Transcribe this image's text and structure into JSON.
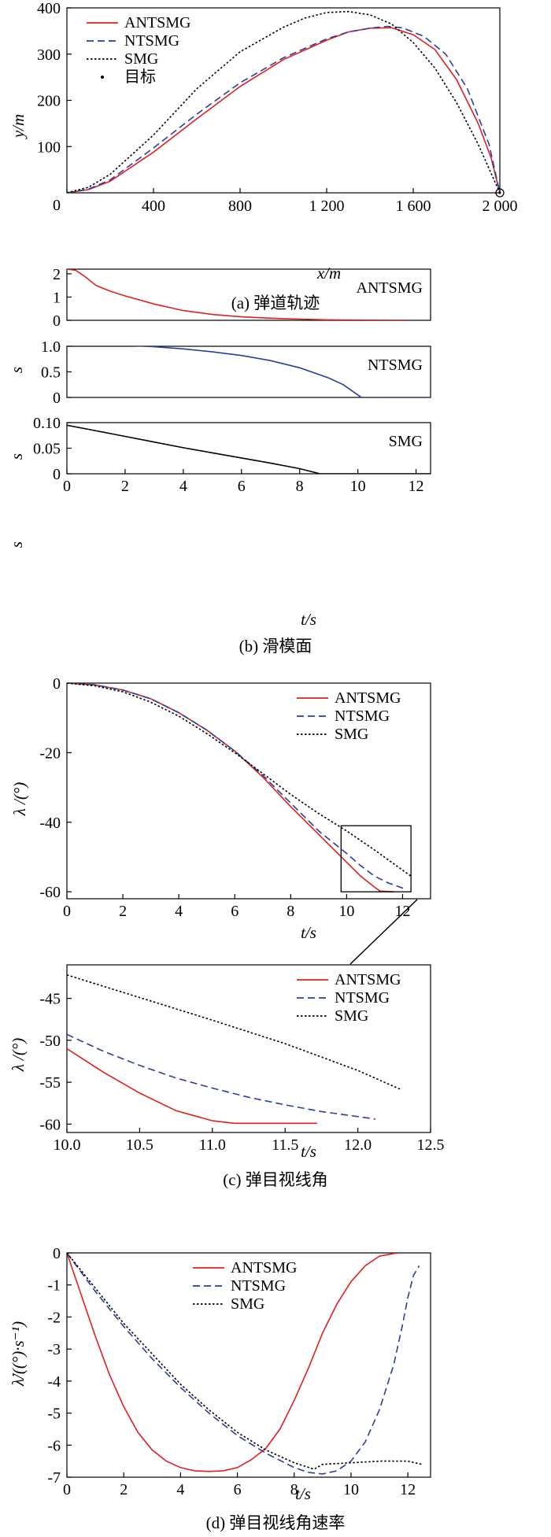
{
  "captions": {
    "a": "(a) 弹道轨迹",
    "b": "(b) 滑模面",
    "c": "(c) 弹目视线角",
    "d": "(d) 弹目视线角速率"
  },
  "colors": {
    "ANTSMG": "#e02020",
    "NTSMG": "#2a3f9a",
    "SMG": "#000000"
  },
  "chart_data": [
    {
      "id": "trajectory",
      "type": "line",
      "xlabel": "x/m",
      "ylabel": "y/m",
      "xlim": [
        0,
        2000
      ],
      "ylim": [
        0,
        400
      ],
      "xticks": [
        "0",
        "400",
        "800",
        "1 200",
        "1 600",
        "2 000"
      ],
      "yticks": [
        "100",
        "200",
        "300",
        "400"
      ],
      "legend_position": "top-left",
      "series": [
        {
          "name": "ANTSMG",
          "style": "solid",
          "color": "#e02020",
          "x": [
            0,
            100,
            200,
            400,
            600,
            800,
            1000,
            1200,
            1300,
            1400,
            1500,
            1600,
            1700,
            1800,
            1900,
            1960,
            2000
          ],
          "y": [
            0,
            7,
            25,
            88,
            160,
            230,
            288,
            330,
            348,
            356,
            357,
            342,
            310,
            245,
            150,
            75,
            0
          ]
        },
        {
          "name": "NTSMG",
          "style": "dashed",
          "color": "#2a3f9a",
          "x": [
            0,
            100,
            200,
            400,
            600,
            800,
            1000,
            1200,
            1300,
            1400,
            1480,
            1550,
            1650,
            1750,
            1850,
            1950,
            2000
          ],
          "y": [
            0,
            8,
            28,
            97,
            170,
            238,
            292,
            333,
            348,
            356,
            360,
            357,
            338,
            300,
            225,
            105,
            0
          ]
        },
        {
          "name": "SMG",
          "style": "dotted",
          "color": "#000000",
          "x": [
            0,
            100,
            200,
            400,
            600,
            800,
            1000,
            1100,
            1200,
            1300,
            1400,
            1500,
            1600,
            1700,
            1800,
            1900,
            2000
          ],
          "y": [
            0,
            12,
            40,
            125,
            225,
            305,
            358,
            378,
            390,
            392,
            385,
            365,
            325,
            270,
            195,
            105,
            0
          ]
        },
        {
          "name": "目标",
          "style": "marker",
          "color": "#000000",
          "x": [
            2000
          ],
          "y": [
            0
          ]
        }
      ]
    },
    {
      "id": "sliding_antsmg",
      "type": "line",
      "xlabel": "",
      "ylabel": "s",
      "xlim": [
        0,
        12.5
      ],
      "ylim": [
        0,
        2.2
      ],
      "yticks": [
        "0",
        "1",
        "2"
      ],
      "label_text": "ANTSMG",
      "series": [
        {
          "name": "ANTSMG",
          "style": "solid",
          "color": "#e02020",
          "x": [
            0,
            0.3,
            0.6,
            1.0,
            1.5,
            2,
            3,
            4,
            5,
            6,
            7,
            8,
            9,
            10,
            11,
            11.7
          ],
          "y": [
            2.2,
            2.15,
            1.9,
            1.5,
            1.25,
            1.05,
            0.7,
            0.42,
            0.25,
            0.15,
            0.09,
            0.05,
            0.02,
            0.01,
            0.005,
            0
          ]
        }
      ]
    },
    {
      "id": "sliding_ntsmg",
      "type": "line",
      "xlabel": "",
      "ylabel": "s",
      "xlim": [
        0,
        12.5
      ],
      "ylim": [
        0,
        1.0
      ],
      "yticks": [
        "0",
        "0.5",
        "1.0"
      ],
      "label_text": "NTSMG",
      "series": [
        {
          "name": "NTSMG",
          "style": "solid",
          "color": "#2a3f9a",
          "x": [
            0,
            1,
            2,
            3,
            4,
            5,
            6,
            7,
            8,
            9,
            9.5,
            10,
            10.2,
            10.4,
            10.6,
            10.8,
            11,
            12,
            12.4
          ],
          "y": [
            1.05,
            1.04,
            1.02,
            0.99,
            0.95,
            0.89,
            0.82,
            0.72,
            0.58,
            0.38,
            0.25,
            0.05,
            -0.03,
            -0.06,
            -0.05,
            0.0,
            0.0,
            0.0,
            0.0
          ]
        }
      ]
    },
    {
      "id": "sliding_smg",
      "type": "line",
      "xlabel": "t/s",
      "ylabel": "s",
      "xlim": [
        0,
        12.5
      ],
      "ylim": [
        0,
        0.1
      ],
      "xticks": [
        "0",
        "2",
        "4",
        "6",
        "8",
        "10",
        "12"
      ],
      "yticks": [
        "0",
        "0.05",
        "0.10"
      ],
      "label_text": "SMG",
      "series": [
        {
          "name": "SMG",
          "style": "solid",
          "color": "#000000",
          "x": [
            0,
            1,
            2,
            3,
            4,
            5,
            6,
            7,
            8,
            8.7,
            9,
            10,
            11,
            12,
            12.5
          ],
          "y": [
            0.095,
            0.084,
            0.073,
            0.062,
            0.051,
            0.041,
            0.031,
            0.021,
            0.01,
            0.0,
            0.0,
            0.0,
            0.0,
            0.0,
            0.0
          ]
        }
      ]
    },
    {
      "id": "los_angle",
      "type": "line",
      "xlabel": "t/s",
      "ylabel": "λ /(°)",
      "xlim": [
        0,
        13
      ],
      "ylim": [
        -62,
        0
      ],
      "xticks": [
        "0",
        "2",
        "4",
        "6",
        "8",
        "10",
        "12"
      ],
      "yticks": [
        "0",
        "-20",
        "-40",
        "-60"
      ],
      "legend_position": "top-right",
      "series": [
        {
          "name": "ANTSMG",
          "style": "solid",
          "color": "#e02020",
          "x": [
            0,
            1,
            2,
            3,
            4,
            5,
            6,
            7,
            8,
            9,
            9.5,
            10,
            10.5,
            11,
            11.2,
            11.7
          ],
          "y": [
            0,
            -0.5,
            -2,
            -4.5,
            -8.5,
            -13.5,
            -19.5,
            -27,
            -35.5,
            -43.5,
            -47.5,
            -51.5,
            -55.5,
            -58.7,
            -59.8,
            -60
          ]
        },
        {
          "name": "NTSMG",
          "style": "dashed",
          "color": "#2a3f9a",
          "x": [
            0,
            1,
            2,
            3,
            4,
            5,
            6,
            7,
            8,
            9,
            10,
            10.5,
            11,
            11.5,
            12.1
          ],
          "y": [
            0,
            -0.5,
            -2,
            -4.5,
            -8.5,
            -13.5,
            -19.5,
            -26.5,
            -34.5,
            -42.5,
            -49,
            -52.5,
            -55.5,
            -57.5,
            -59.2
          ]
        },
        {
          "name": "SMG",
          "style": "dotted",
          "color": "#000000",
          "x": [
            0,
            1,
            2,
            3,
            4,
            5,
            6,
            7,
            8,
            9,
            10,
            11,
            12.3
          ],
          "y": [
            0,
            -0.8,
            -2.5,
            -5.5,
            -9.5,
            -14.5,
            -20,
            -26,
            -32,
            -37.5,
            -42.5,
            -48,
            -55.5
          ]
        }
      ]
    },
    {
      "id": "los_angle_zoom",
      "type": "line",
      "xlabel": "t/s",
      "ylabel": "λ /(°)",
      "xlim": [
        10.0,
        12.5
      ],
      "ylim": [
        -61,
        -41
      ],
      "xticks": [
        "10.0",
        "10.5",
        "11.0",
        "11.5",
        "12.0",
        "12.5"
      ],
      "yticks": [
        "-45",
        "-50",
        "-55",
        "-60"
      ],
      "legend_position": "top-right",
      "series": [
        {
          "name": "ANTSMG",
          "style": "solid",
          "color": "#e02020",
          "x": [
            10.0,
            10.25,
            10.5,
            10.75,
            11.0,
            11.15,
            11.4,
            11.72
          ],
          "y": [
            -51,
            -53.8,
            -56.3,
            -58.4,
            -59.6,
            -59.9,
            -59.9,
            -59.9
          ]
        },
        {
          "name": "NTSMG",
          "style": "dashed",
          "color": "#2a3f9a",
          "x": [
            10.0,
            10.25,
            10.5,
            10.75,
            11.0,
            11.25,
            11.5,
            11.75,
            12.0,
            12.12
          ],
          "y": [
            -49.3,
            -51.3,
            -53.0,
            -54.5,
            -55.7,
            -56.8,
            -57.7,
            -58.5,
            -59.1,
            -59.4
          ]
        },
        {
          "name": "SMG",
          "style": "dotted",
          "color": "#000000",
          "x": [
            10.0,
            10.5,
            11.0,
            11.5,
            12.0,
            12.3
          ],
          "y": [
            -42.2,
            -44.9,
            -47.6,
            -50.4,
            -53.6,
            -55.9
          ]
        }
      ]
    },
    {
      "id": "los_rate",
      "type": "line",
      "xlabel": "t/s",
      "ylabel": "λ̇/((°)·s⁻¹)",
      "xlim": [
        0,
        12.8
      ],
      "ylim": [
        -7,
        0
      ],
      "xticks": [
        "0",
        "2",
        "4",
        "6",
        "8",
        "10",
        "12"
      ],
      "yticks": [
        "0",
        "-1",
        "-2",
        "-3",
        "-4",
        "-5",
        "-6",
        "-7"
      ],
      "legend_position": "top-center",
      "series": [
        {
          "name": "ANTSMG",
          "style": "solid",
          "color": "#e02020",
          "x": [
            0,
            0.5,
            1,
            1.5,
            2,
            2.5,
            3,
            3.5,
            4,
            4.5,
            5,
            5.5,
            6,
            6.5,
            7,
            7.5,
            8,
            8.5,
            9,
            9.5,
            10,
            10.5,
            11,
            11.5,
            11.7
          ],
          "y": [
            0,
            -1.3,
            -2.6,
            -3.8,
            -4.8,
            -5.6,
            -6.15,
            -6.5,
            -6.7,
            -6.8,
            -6.82,
            -6.8,
            -6.7,
            -6.45,
            -6.1,
            -5.5,
            -4.6,
            -3.6,
            -2.5,
            -1.6,
            -0.9,
            -0.4,
            -0.1,
            -0.02,
            0
          ]
        },
        {
          "name": "NTSMG",
          "style": "dashed",
          "color": "#2a3f9a",
          "x": [
            0,
            1,
            2,
            3,
            4,
            5,
            6,
            7,
            8,
            8.5,
            9,
            9.5,
            10,
            10.5,
            11,
            11.5,
            11.8,
            12.0,
            12.2,
            12.4
          ],
          "y": [
            0,
            -1.2,
            -2.3,
            -3.3,
            -4.2,
            -5.0,
            -5.7,
            -6.25,
            -6.7,
            -6.85,
            -6.9,
            -6.8,
            -6.5,
            -5.9,
            -4.9,
            -3.5,
            -2.3,
            -1.4,
            -0.7,
            -0.4
          ]
        },
        {
          "name": "SMG",
          "style": "dotted",
          "color": "#000000",
          "x": [
            0,
            1,
            2,
            3,
            4,
            5,
            6,
            7,
            8,
            8.7,
            9,
            10,
            11,
            12,
            12.5
          ],
          "y": [
            0,
            -1.1,
            -2.2,
            -3.15,
            -4.1,
            -4.9,
            -5.6,
            -6.15,
            -6.55,
            -6.75,
            -6.6,
            -6.55,
            -6.5,
            -6.5,
            -6.6
          ]
        }
      ]
    }
  ]
}
